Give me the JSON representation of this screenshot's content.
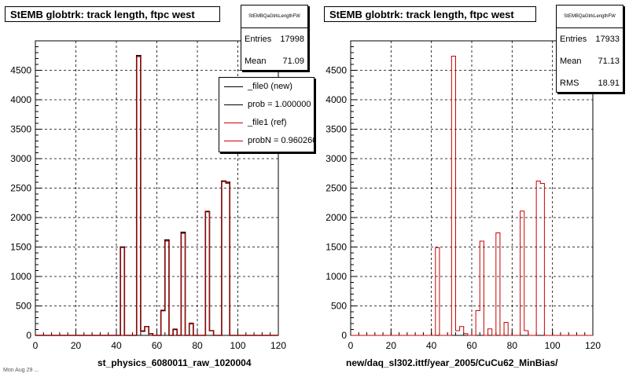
{
  "footer": "Mon Aug 29 ...",
  "panels": [
    {
      "title": "StEMB globtrk: track length, ftpc west",
      "stats": {
        "name": "StEMBQaGtrkLengthFW",
        "rows": [
          {
            "label": "Entries",
            "value": "17998"
          },
          {
            "label": "Mean",
            "value": "71.09"
          }
        ]
      },
      "legend": [
        {
          "label": "_file0 (new)",
          "color": "#000000"
        },
        {
          "label": "prob = 1.000000",
          "color": "#000000"
        },
        {
          "label": "_file1 (ref)",
          "color": "#cc0000"
        },
        {
          "label": "probN = 0.960260",
          "color": "#cc0000"
        }
      ],
      "xcaption": "st_physics_6080011_raw_1020004"
    },
    {
      "title": "StEMB globtrk: track length, ftpc west",
      "stats": {
        "name": "StEMBQaGtrkLengthFW",
        "rows": [
          {
            "label": "Entries",
            "value": "17933"
          },
          {
            "label": "Mean",
            "value": "71.13"
          },
          {
            "label": "RMS",
            "value": "18.91"
          }
        ]
      },
      "xcaption": "new/daq_sl302.ittf/year_2005/CuCu62_MinBias/"
    }
  ],
  "chart_data": [
    {
      "type": "histogram",
      "title": "StEMB globtrk: track length, ftpc west",
      "xlim": [
        0,
        120
      ],
      "ylim": [
        0,
        5000
      ],
      "x_ticks": [
        0,
        20,
        40,
        60,
        80,
        100,
        120
      ],
      "y_ticks": [
        0,
        500,
        1000,
        1500,
        2000,
        2500,
        3000,
        3500,
        4000,
        4500
      ],
      "grid": true,
      "bin_width": 2,
      "series": [
        {
          "name": "_file0 (new)",
          "color": "#000000",
          "bins": [
            [
              42,
              1500
            ],
            [
              50,
              4750
            ],
            [
              52,
              70
            ],
            [
              54,
              150
            ],
            [
              56,
              30
            ],
            [
              62,
              420
            ],
            [
              64,
              1620
            ],
            [
              68,
              100
            ],
            [
              72,
              1750
            ],
            [
              76,
              200
            ],
            [
              84,
              2100
            ],
            [
              86,
              80
            ],
            [
              92,
              2620
            ],
            [
              94,
              2600
            ]
          ]
        },
        {
          "name": "_file1 (ref)",
          "color": "#cc0000",
          "bins": [
            [
              42,
              1490
            ],
            [
              50,
              4730
            ],
            [
              52,
              80
            ],
            [
              54,
              150
            ],
            [
              56,
              30
            ],
            [
              62,
              430
            ],
            [
              64,
              1600
            ],
            [
              68,
              110
            ],
            [
              72,
              1730
            ],
            [
              76,
              210
            ],
            [
              84,
              2110
            ],
            [
              86,
              80
            ],
            [
              92,
              2610
            ],
            [
              94,
              2580
            ]
          ]
        }
      ]
    },
    {
      "type": "histogram",
      "title": "StEMB globtrk: track length, ftpc west",
      "xlim": [
        0,
        120
      ],
      "ylim": [
        0,
        5000
      ],
      "x_ticks": [
        0,
        20,
        40,
        60,
        80,
        100,
        120
      ],
      "y_ticks": [
        0,
        500,
        1000,
        1500,
        2000,
        2500,
        3000,
        3500,
        4000,
        4500
      ],
      "grid": true,
      "bin_width": 2,
      "series": [
        {
          "color": "#cc0000",
          "bins": [
            [
              42,
              1490
            ],
            [
              50,
              4740
            ],
            [
              52,
              80
            ],
            [
              54,
              150
            ],
            [
              56,
              30
            ],
            [
              62,
              420
            ],
            [
              64,
              1600
            ],
            [
              68,
              110
            ],
            [
              72,
              1740
            ],
            [
              76,
              220
            ],
            [
              84,
              2110
            ],
            [
              86,
              80
            ],
            [
              92,
              2620
            ],
            [
              94,
              2580
            ]
          ]
        }
      ]
    }
  ]
}
